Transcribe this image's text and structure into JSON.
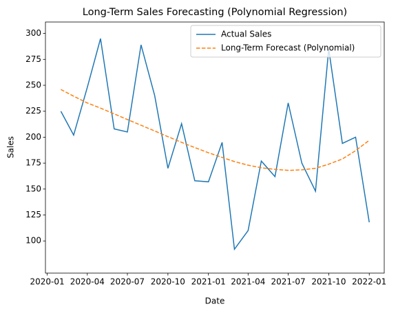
{
  "chart_data": {
    "type": "line",
    "title": "Long-Term Sales Forecasting (Polynomial Regression)",
    "xlabel": "Date",
    "ylabel": "Sales",
    "x": [
      "2020-02",
      "2020-03",
      "2020-04",
      "2020-05",
      "2020-06",
      "2020-07",
      "2020-08",
      "2020-09",
      "2020-10",
      "2020-11",
      "2020-12",
      "2021-01",
      "2021-02",
      "2021-03",
      "2021-04",
      "2021-05",
      "2021-06",
      "2021-07",
      "2021-08",
      "2021-09",
      "2021-10",
      "2021-11",
      "2021-12",
      "2022-01"
    ],
    "series": [
      {
        "name": "Actual Sales",
        "color": "#1f77b4",
        "style": "solid",
        "values": [
          225,
          202,
          248,
          295,
          208,
          205,
          289,
          240,
          170,
          213,
          158,
          157,
          195,
          92,
          110,
          177,
          162,
          233,
          175,
          148,
          285,
          194,
          200,
          118
        ]
      },
      {
        "name": "Long-Term Forecast (Polynomial)",
        "color": "#ff7f0e",
        "style": "dashed",
        "values": [
          246,
          239.5,
          233,
          228,
          222.5,
          217,
          211.5,
          206,
          200.5,
          195,
          190,
          185,
          180.5,
          176.5,
          173,
          170.5,
          169,
          168,
          168.5,
          170,
          174,
          179,
          187,
          197
        ]
      }
    ],
    "xlim": [
      "2019-12-28",
      "2022-02-04"
    ],
    "xticks": [
      "2020-01",
      "2020-04",
      "2020-07",
      "2020-10",
      "2021-01",
      "2021-04",
      "2021-07",
      "2021-10",
      "2022-01"
    ],
    "ylim": [
      69,
      311
    ],
    "yticks": [
      100,
      125,
      150,
      175,
      200,
      225,
      250,
      275,
      300
    ],
    "legend": "upper right",
    "grid": false
  }
}
